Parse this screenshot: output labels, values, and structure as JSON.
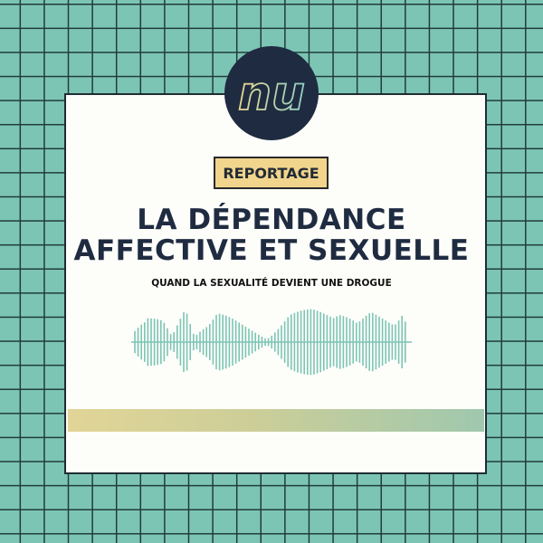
{
  "logo": {
    "text": "nu"
  },
  "badge": {
    "label": "REPORTAGE"
  },
  "title": {
    "line1": "LA DÉPENDANCE",
    "line2": "AFFECTIVE ET SEXUELLE"
  },
  "subtitle": "QUAND LA SEXUALITÉ DEVIENT UNE DROGUE",
  "colors": {
    "background": "#7cc5b4",
    "grid": "#1f3b3a",
    "card": "#fdfdfa",
    "navy": "#1f2b40",
    "badge": "#f1d58c",
    "wave": "#7cc5b4",
    "bar_start": "#e1d597",
    "bar_end": "#9fc8ae"
  }
}
